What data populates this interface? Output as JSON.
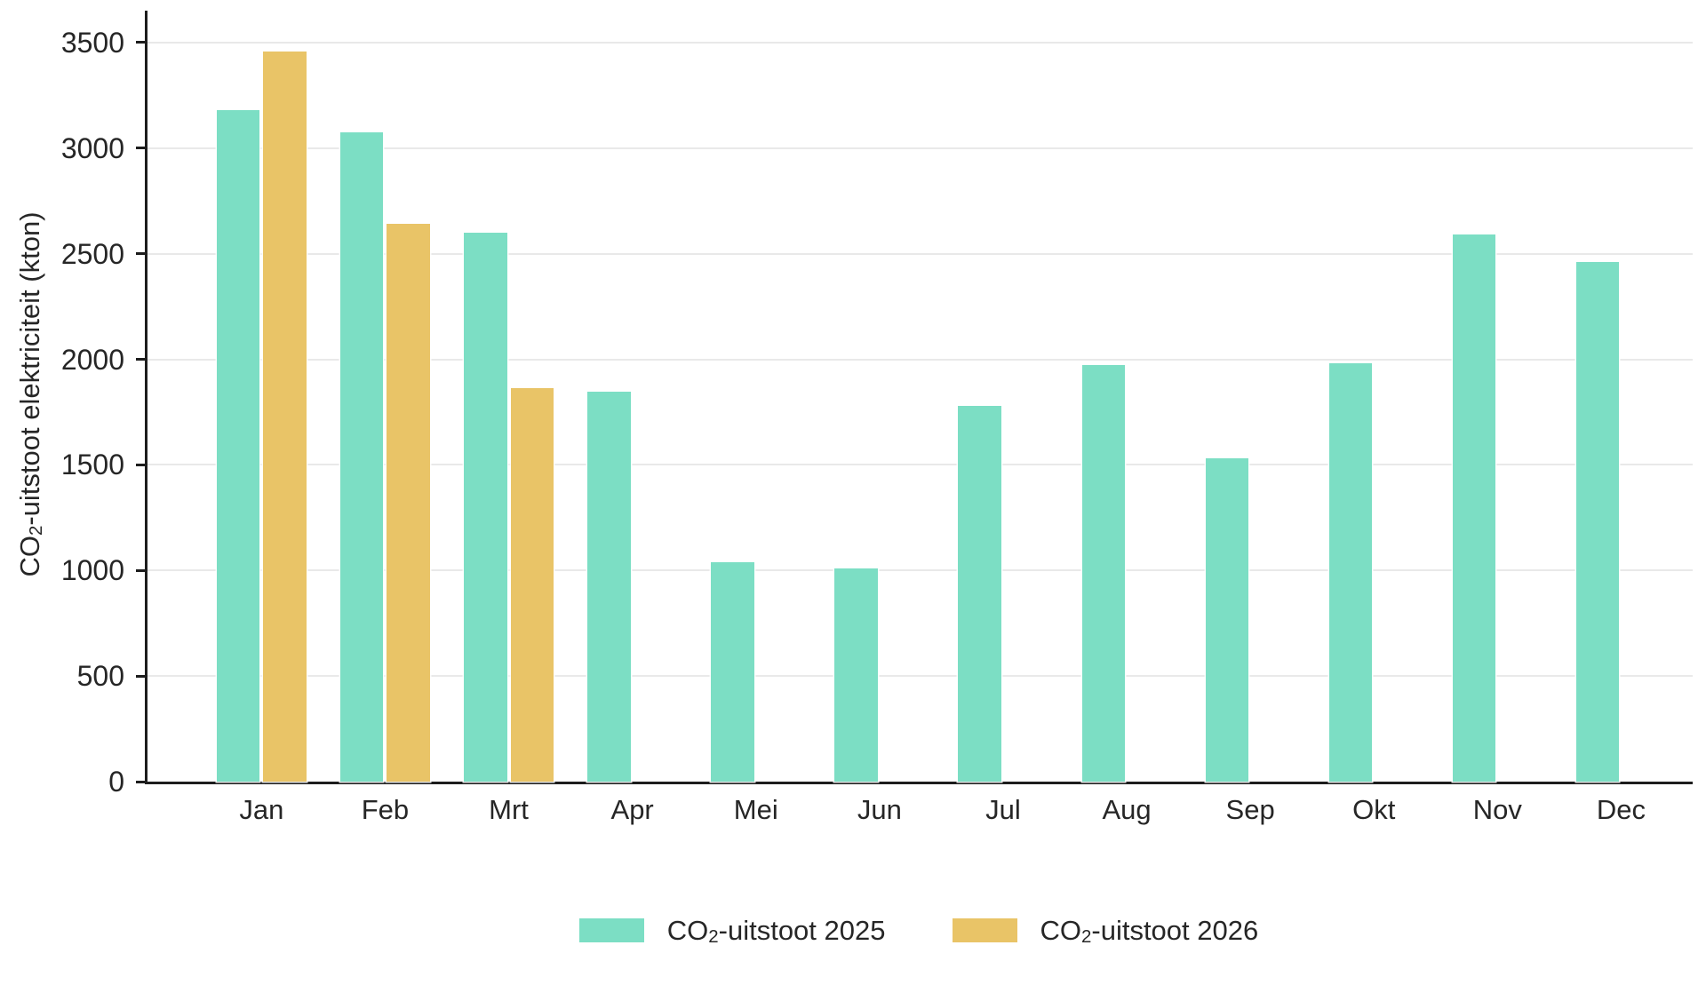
{
  "chart_data": {
    "type": "bar",
    "title": "",
    "xlabel": "",
    "ylabel": "CO2-uitstoot elektriciteit (kton)",
    "ylabel_parts": {
      "prefix": "CO",
      "subscript": "2",
      "suffix": "-uitstoot elektriciteit (kton)"
    },
    "categories": [
      "Jan",
      "Feb",
      "Mrt",
      "Apr",
      "Mei",
      "Jun",
      "Jul",
      "Aug",
      "Sep",
      "Okt",
      "Nov",
      "Dec"
    ],
    "series": [
      {
        "name": "CO2-uitstoot 2025",
        "label_parts": {
          "prefix": "CO",
          "subscript": "2",
          "suffix": "-uitstoot 2025"
        },
        "color": "#7CDEC4",
        "values": [
          3180,
          3075,
          2600,
          1845,
          1040,
          1010,
          1780,
          1975,
          1530,
          1980,
          2590,
          2460
        ]
      },
      {
        "name": "CO2-uitstoot 2026",
        "label_parts": {
          "prefix": "CO",
          "subscript": "2",
          "suffix": "-uitstoot 2026"
        },
        "color": "#E9C467",
        "values": [
          3460,
          2640,
          1865,
          null,
          null,
          null,
          null,
          null,
          null,
          null,
          null,
          null
        ]
      }
    ],
    "ylim": [
      0,
      3500
    ],
    "yticks": [
      0,
      500,
      1000,
      1500,
      2000,
      2500,
      3000,
      3500
    ],
    "grid": "horizontal",
    "legend_position": "bottom"
  },
  "colors": {
    "series_2025": "#7CDEC4",
    "series_2026": "#E9C467",
    "axis": "#1d1d1d",
    "gridline": "#e9e9e9",
    "text": "#262626",
    "background": "#ffffff"
  }
}
